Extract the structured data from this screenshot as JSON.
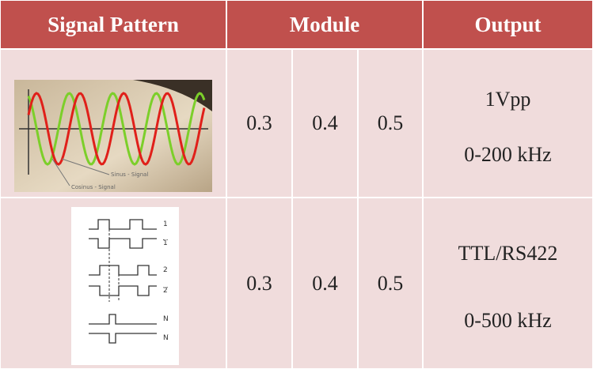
{
  "table": {
    "header": [
      "Signal Pattern",
      "Module",
      "Output"
    ],
    "rows": [
      {
        "module": [
          "0.3",
          "0.4",
          "0.5"
        ],
        "output": [
          "1Vpp",
          "0-200 kHz"
        ],
        "image_labels": [
          "Sinus - Signal",
          "Cosinus - Signal"
        ]
      },
      {
        "module": [
          "0.3",
          "0.4",
          "0.5"
        ],
        "output": [
          "TTL/RS422",
          "0-500 kHz"
        ],
        "image_labels": [
          "1",
          "1",
          "2",
          "2",
          "N",
          "N"
        ]
      }
    ]
  }
}
